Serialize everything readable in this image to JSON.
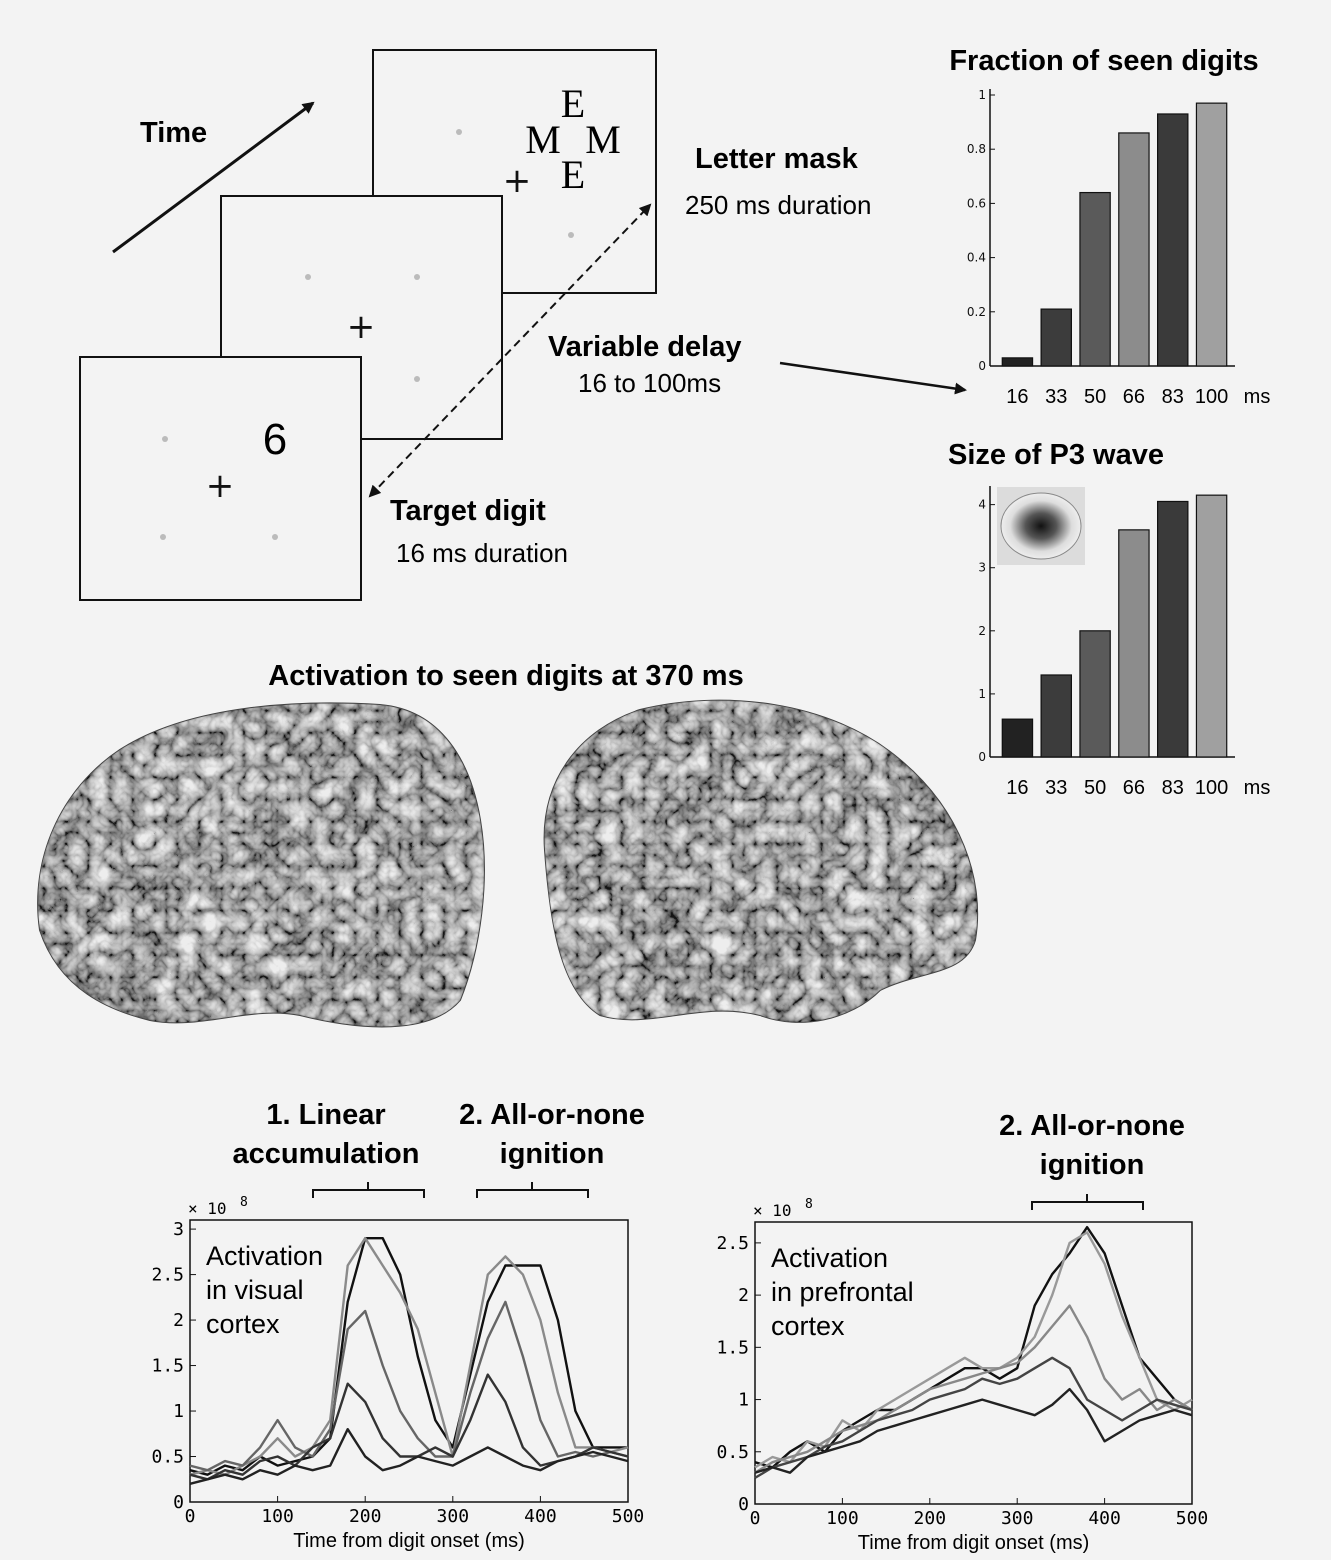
{
  "paradigm": {
    "time_label": "Time",
    "mask_letters": [
      "E",
      "M",
      "M",
      "E"
    ],
    "fixation": "+",
    "target_digit": "6",
    "letter_mask_title": "Letter mask",
    "letter_mask_duration": "250 ms duration",
    "variable_delay_title": "Variable delay",
    "variable_delay_range": "16 to 100ms",
    "target_digit_title": "Target digit",
    "target_digit_duration": "16 ms duration"
  },
  "brain": {
    "title": "Activation to seen digits at 370 ms"
  },
  "chart_data": [
    {
      "type": "bar",
      "title": "Fraction of seen digits",
      "categories": [
        "16",
        "33",
        "50",
        "66",
        "83",
        "100"
      ],
      "unit_label": "ms",
      "values": [
        0.03,
        0.21,
        0.64,
        0.86,
        0.93,
        0.97
      ],
      "ylim": [
        0,
        1
      ],
      "yticks": [
        "0",
        "0.2",
        "0.4",
        "0.6",
        "0.8",
        "1"
      ],
      "colors": [
        "#222222",
        "#3c3c3c",
        "#5a5a5a",
        "#8c8c8c",
        "#3a3a3a",
        "#a0a0a0"
      ]
    },
    {
      "type": "bar",
      "title": "Size of P3 wave",
      "categories": [
        "16",
        "33",
        "50",
        "66",
        "83",
        "100"
      ],
      "unit_label": "ms",
      "values": [
        0.6,
        1.3,
        2.0,
        3.6,
        4.05,
        4.15
      ],
      "ylim": [
        0,
        4.2
      ],
      "yticks": [
        "0",
        "1",
        "2",
        "3",
        "4"
      ],
      "colors": [
        "#222222",
        "#3c3c3c",
        "#5a5a5a",
        "#8c8c8c",
        "#3a3a3a",
        "#a0a0a0"
      ]
    },
    {
      "type": "line",
      "annotations": [
        "1. Linear accumulation",
        "2. All-or-none ignition"
      ],
      "inset_text": [
        "Activation",
        "in visual",
        "cortex"
      ],
      "xlabel": "Time from digit onset (ms)",
      "scale_label": "× 10",
      "scale_exp": "8",
      "xlim": [
        0,
        500
      ],
      "ylim": [
        0,
        3.1
      ],
      "xticks": [
        "0",
        "100",
        "200",
        "300",
        "400",
        "500"
      ],
      "yticks": [
        "0",
        "0.5",
        "1",
        "1.5",
        "2",
        "2.5",
        "3"
      ],
      "x": [
        0,
        20,
        40,
        60,
        80,
        100,
        120,
        140,
        160,
        180,
        200,
        220,
        240,
        260,
        280,
        300,
        320,
        340,
        360,
        380,
        400,
        420,
        440,
        460,
        480,
        500
      ],
      "series": [
        {
          "values": [
            0.35,
            0.3,
            0.4,
            0.35,
            0.5,
            0.4,
            0.45,
            0.5,
            0.7,
            2.2,
            2.9,
            2.9,
            2.5,
            1.6,
            0.9,
            0.6,
            1.4,
            2.2,
            2.6,
            2.6,
            2.6,
            2.0,
            1.0,
            0.6,
            0.6,
            0.6
          ],
          "color": "#111111"
        },
        {
          "values": [
            0.3,
            0.35,
            0.3,
            0.4,
            0.5,
            0.7,
            0.5,
            0.6,
            0.9,
            2.6,
            2.9,
            2.6,
            2.3,
            1.9,
            1.2,
            0.5,
            1.5,
            2.5,
            2.7,
            2.5,
            2.0,
            1.2,
            0.6,
            0.6,
            0.55,
            0.6
          ],
          "color": "#8a8a8a"
        },
        {
          "values": [
            0.4,
            0.35,
            0.45,
            0.4,
            0.6,
            0.9,
            0.6,
            0.5,
            0.8,
            1.9,
            2.1,
            1.5,
            1.0,
            0.7,
            0.5,
            0.5,
            1.2,
            1.8,
            2.2,
            1.6,
            0.9,
            0.5,
            0.55,
            0.5,
            0.55,
            0.5
          ],
          "color": "#666666"
        },
        {
          "values": [
            0.3,
            0.25,
            0.35,
            0.3,
            0.45,
            0.5,
            0.4,
            0.6,
            0.7,
            1.3,
            1.1,
            0.7,
            0.5,
            0.5,
            0.6,
            0.5,
            0.9,
            1.4,
            1.1,
            0.6,
            0.4,
            0.45,
            0.5,
            0.6,
            0.55,
            0.5
          ],
          "color": "#333333"
        },
        {
          "values": [
            0.2,
            0.25,
            0.3,
            0.25,
            0.35,
            0.3,
            0.4,
            0.35,
            0.4,
            0.8,
            0.5,
            0.35,
            0.4,
            0.5,
            0.45,
            0.4,
            0.5,
            0.6,
            0.5,
            0.4,
            0.35,
            0.45,
            0.5,
            0.55,
            0.5,
            0.45
          ],
          "color": "#222222"
        }
      ]
    },
    {
      "type": "line",
      "annotations": [
        "2. All-or-none ignition"
      ],
      "inset_text": [
        "Activation",
        "in prefrontal",
        "cortex"
      ],
      "xlabel": "Time from digit onset (ms)",
      "scale_label": "× 10",
      "scale_exp": "8",
      "xlim": [
        0,
        500
      ],
      "ylim": [
        0,
        2.7
      ],
      "xticks": [
        "0",
        "100",
        "200",
        "300",
        "400",
        "500"
      ],
      "yticks": [
        "0",
        "0.5",
        "1",
        "1.5",
        "2",
        "2.5"
      ],
      "x": [
        0,
        20,
        40,
        60,
        80,
        100,
        120,
        140,
        160,
        180,
        200,
        220,
        240,
        260,
        280,
        300,
        320,
        340,
        360,
        380,
        400,
        420,
        440,
        460,
        480,
        500
      ],
      "series": [
        {
          "values": [
            0.4,
            0.35,
            0.5,
            0.6,
            0.5,
            0.7,
            0.8,
            0.9,
            0.9,
            1.0,
            1.1,
            1.2,
            1.3,
            1.3,
            1.2,
            1.3,
            1.9,
            2.2,
            2.4,
            2.65,
            2.4,
            1.9,
            1.4,
            1.2,
            1.0,
            0.9
          ],
          "color": "#111111"
        },
        {
          "values": [
            0.35,
            0.45,
            0.4,
            0.6,
            0.55,
            0.8,
            0.7,
            0.9,
            1.0,
            1.1,
            1.2,
            1.3,
            1.4,
            1.3,
            1.3,
            1.4,
            1.6,
            2.0,
            2.5,
            2.6,
            2.3,
            1.8,
            1.4,
            1.0,
            0.9,
            1.0
          ],
          "color": "#999999"
        },
        {
          "values": [
            0.3,
            0.4,
            0.45,
            0.5,
            0.6,
            0.7,
            0.75,
            0.8,
            0.9,
            1.0,
            1.1,
            1.15,
            1.2,
            1.25,
            1.3,
            1.35,
            1.5,
            1.7,
            1.9,
            1.6,
            1.2,
            1.0,
            1.1,
            0.9,
            1.0,
            0.9
          ],
          "color": "#888888"
        },
        {
          "values": [
            0.25,
            0.35,
            0.4,
            0.45,
            0.55,
            0.6,
            0.7,
            0.8,
            0.85,
            0.9,
            1.0,
            1.05,
            1.1,
            1.2,
            1.15,
            1.2,
            1.3,
            1.4,
            1.3,
            1.0,
            0.9,
            0.8,
            0.9,
            1.0,
            0.95,
            0.9
          ],
          "color": "#444444"
        },
        {
          "values": [
            0.3,
            0.35,
            0.3,
            0.45,
            0.5,
            0.55,
            0.6,
            0.7,
            0.75,
            0.8,
            0.85,
            0.9,
            0.95,
            1.0,
            0.95,
            0.9,
            0.85,
            0.95,
            1.1,
            0.9,
            0.6,
            0.7,
            0.8,
            0.85,
            0.9,
            0.85
          ],
          "color": "#222222"
        }
      ]
    }
  ]
}
